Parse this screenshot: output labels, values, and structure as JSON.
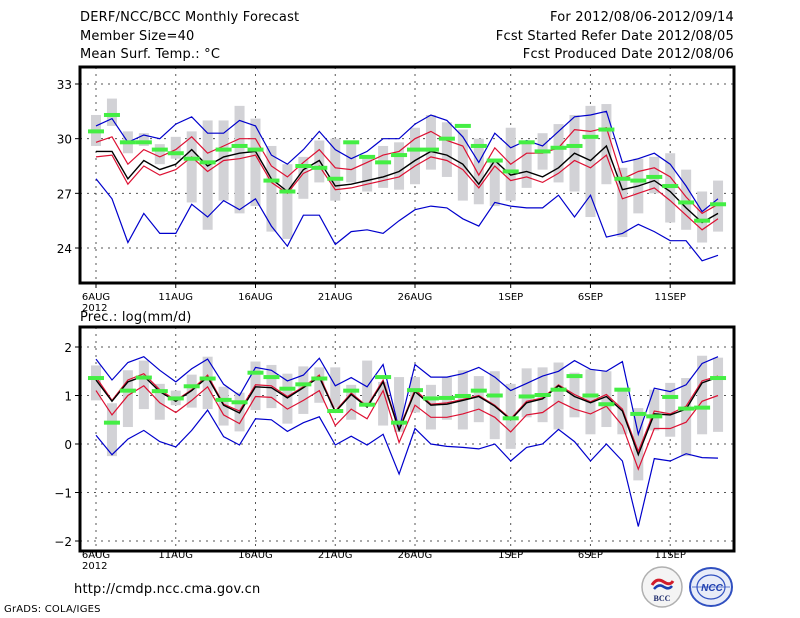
{
  "header": {
    "title": "DERF/NCC/BCC Monthly Forecast",
    "member_size": "Member Size=40",
    "variable_top": "Mean Surf. Temp.: °C",
    "period": "For 2012/08/06-2012/09/14",
    "start_date": "Fcst Started Refer Date 2012/08/05",
    "produced_date": "Fcst Produced Date 2012/08/06"
  },
  "footer": {
    "url": "http://cmdp.ncc.cma.gov.cn",
    "credit": "GrADS: COLA/IGES",
    "logo_left": "BCC",
    "logo_right": "NCC"
  },
  "colors": {
    "envelope": "#0000cc",
    "spread": "#dd1133",
    "mean": "#000000",
    "obs": "#44ee44",
    "bars": "#d2d2d6",
    "grid": "#555555"
  },
  "chart_data": [
    {
      "type": "line",
      "title": "Mean Surf. Temp.: °C",
      "xlabel": "",
      "ylabel": "°C",
      "ylim": [
        22,
        34
      ],
      "yticks": [
        24,
        27,
        30,
        33
      ],
      "ytick_labels": [
        "24",
        "27",
        "30",
        "33"
      ],
      "xtick_labels": [
        "6AUG",
        "11AUG",
        "16AUG",
        "21AUG",
        "26AUG",
        "1SEP",
        "6SEP",
        "11SEP"
      ],
      "xtick_index": [
        0,
        5,
        10,
        15,
        20,
        26,
        31,
        36
      ],
      "year_label": "2012",
      "grid": true,
      "x": [
        "08-06",
        "08-07",
        "08-08",
        "08-09",
        "08-10",
        "08-11",
        "08-12",
        "08-13",
        "08-14",
        "08-15",
        "08-16",
        "08-17",
        "08-18",
        "08-19",
        "08-20",
        "08-21",
        "08-22",
        "08-23",
        "08-24",
        "08-25",
        "08-26",
        "08-27",
        "08-28",
        "08-29",
        "08-30",
        "08-31",
        "09-01",
        "09-02",
        "09-03",
        "09-04",
        "09-05",
        "09-06",
        "09-07",
        "09-08",
        "09-09",
        "09-10",
        "09-11",
        "09-12",
        "09-13",
        "09-14"
      ],
      "bars_low": [
        29.6,
        30.7,
        29.2,
        29.6,
        28.6,
        28.9,
        26.5,
        25.0,
        26.6,
        25.9,
        26.3,
        24.9,
        24.5,
        26.7,
        27.6,
        26.6,
        27.6,
        27.1,
        27.3,
        27.2,
        27.5,
        28.3,
        27.9,
        26.6,
        26.4,
        26.3,
        26.6,
        27.3,
        28.3,
        27.6,
        27.1,
        25.7,
        27.5,
        24.6,
        25.9,
        27.0,
        25.4,
        25.0,
        24.3,
        24.9
      ],
      "bars_high": [
        31.3,
        32.2,
        30.4,
        30.3,
        29.7,
        30.1,
        30.4,
        31.0,
        31.0,
        31.8,
        31.1,
        29.6,
        28.6,
        29.0,
        29.9,
        30.0,
        29.7,
        29.0,
        29.6,
        29.8,
        30.6,
        31.3,
        30.9,
        30.5,
        30.0,
        28.7,
        30.6,
        29.9,
        30.3,
        30.8,
        31.3,
        31.8,
        31.9,
        28.4,
        28.9,
        29.0,
        29.2,
        28.3,
        27.1,
        27.7
      ],
      "series": [
        {
          "name": "Observed",
          "values": [
            30.4,
            31.3,
            29.8,
            29.8,
            29.4,
            29.2,
            28.9,
            28.7,
            29.4,
            29.6,
            29.4,
            27.7,
            27.1,
            28.5,
            28.4,
            27.8,
            29.8,
            29.0,
            28.7,
            29.1,
            29.4,
            29.4,
            30.0,
            30.7,
            29.6,
            28.8,
            28.2,
            29.8,
            29.3,
            29.5,
            29.6,
            30.1,
            30.5,
            27.8,
            27.7,
            27.9,
            27.4,
            26.5,
            25.5,
            26.4
          ]
        },
        {
          "name": "Ensemble max",
          "values": [
            30.7,
            31.1,
            29.8,
            30.2,
            30.0,
            30.8,
            31.2,
            30.3,
            30.3,
            31.0,
            30.7,
            29.1,
            28.6,
            29.4,
            30.4,
            29.4,
            28.9,
            29.3,
            30.0,
            30.0,
            30.8,
            31.3,
            31.0,
            30.1,
            28.7,
            30.3,
            29.5,
            29.9,
            29.6,
            30.4,
            31.2,
            31.3,
            31.5,
            28.7,
            28.9,
            29.2,
            28.6,
            27.4,
            26.0,
            26.7
          ]
        },
        {
          "name": "Mean + 1 std",
          "values": [
            29.8,
            30.1,
            28.6,
            29.4,
            29.0,
            29.4,
            30.1,
            29.2,
            29.6,
            30.0,
            30.0,
            28.5,
            27.9,
            28.7,
            29.4,
            28.4,
            28.3,
            28.7,
            29.1,
            29.3,
            30.0,
            30.4,
            29.9,
            29.6,
            28.0,
            29.5,
            28.6,
            29.2,
            29.2,
            29.5,
            30.5,
            30.4,
            30.6,
            27.8,
            28.2,
            28.4,
            27.9,
            26.8,
            25.9,
            26.4
          ]
        },
        {
          "name": "Ensemble mean",
          "values": [
            29.3,
            29.3,
            27.8,
            28.8,
            28.3,
            28.6,
            29.4,
            28.5,
            29.0,
            29.2,
            29.3,
            27.8,
            27.1,
            28.3,
            28.8,
            27.4,
            27.5,
            27.7,
            27.9,
            28.2,
            28.8,
            29.3,
            29.1,
            28.6,
            27.5,
            28.8,
            28.0,
            28.2,
            27.9,
            28.4,
            29.2,
            28.8,
            29.6,
            27.2,
            27.4,
            27.7,
            27.1,
            26.2,
            25.4,
            25.9
          ]
        },
        {
          "name": "Mean - 1 std",
          "values": [
            29.0,
            29.1,
            27.5,
            28.5,
            28.0,
            28.3,
            29.0,
            28.2,
            28.8,
            28.9,
            29.1,
            27.6,
            27.0,
            28.1,
            28.5,
            27.2,
            27.3,
            27.5,
            27.7,
            27.9,
            28.5,
            29.0,
            28.8,
            28.3,
            27.3,
            28.5,
            27.7,
            27.9,
            27.6,
            28.1,
            28.8,
            28.4,
            29.1,
            26.7,
            27.0,
            27.3,
            26.6,
            25.8,
            25.0,
            25.6
          ]
        },
        {
          "name": "Ensemble min",
          "values": [
            27.8,
            26.7,
            24.3,
            25.9,
            24.8,
            24.8,
            26.4,
            25.7,
            26.6,
            26.1,
            26.7,
            25.2,
            24.1,
            25.8,
            25.8,
            24.2,
            24.9,
            25.0,
            24.8,
            25.5,
            26.1,
            26.3,
            26.2,
            25.6,
            25.2,
            26.5,
            26.3,
            26.2,
            26.2,
            26.9,
            25.7,
            26.9,
            24.6,
            24.8,
            25.3,
            24.9,
            24.4,
            24.4,
            23.3,
            23.6
          ]
        }
      ]
    },
    {
      "type": "line",
      "title": "Prec.: log(mm/d)",
      "xlabel": "",
      "ylabel": "log(mm/d)",
      "ylim": [
        -2.1,
        2.3
      ],
      "yticks": [
        -2,
        -1,
        0,
        1,
        2
      ],
      "ytick_labels": [
        "−2",
        "−1",
        "0",
        "1",
        "2"
      ],
      "xtick_labels": [
        "6AUG",
        "11AUG",
        "16AUG",
        "21AUG",
        "26AUG",
        "1SEP",
        "6SEP",
        "11SEP"
      ],
      "xtick_index": [
        0,
        5,
        10,
        15,
        20,
        26,
        31,
        36
      ],
      "year_label": "2012",
      "grid": true,
      "x": [
        "08-06",
        "08-07",
        "08-08",
        "08-09",
        "08-10",
        "08-11",
        "08-12",
        "08-13",
        "08-14",
        "08-15",
        "08-16",
        "08-17",
        "08-18",
        "08-19",
        "08-20",
        "08-21",
        "08-22",
        "08-23",
        "08-24",
        "08-25",
        "08-26",
        "08-27",
        "08-28",
        "08-29",
        "08-30",
        "08-31",
        "09-01",
        "09-02",
        "09-03",
        "09-04",
        "09-05",
        "09-06",
        "09-07",
        "09-08",
        "09-09",
        "09-10",
        "09-11",
        "09-12",
        "09-13",
        "09-14"
      ],
      "bars_low": [
        0.9,
        -0.25,
        0.35,
        0.72,
        0.5,
        0.8,
        0.75,
        0.72,
        0.38,
        0.26,
        0.7,
        0.74,
        0.42,
        0.62,
        0.85,
        0.75,
        0.5,
        0.78,
        0.38,
        0.25,
        0.65,
        0.3,
        0.5,
        0.3,
        0.45,
        0.1,
        -0.1,
        0.55,
        0.45,
        0.3,
        0.55,
        0.2,
        0.35,
        0.2,
        -0.75,
        0.28,
        0.15,
        -0.25,
        0.2,
        0.25
      ],
      "bars_high": [
        1.62,
        0.84,
        1.52,
        1.72,
        1.24,
        1.1,
        1.43,
        1.8,
        1.18,
        1.06,
        1.7,
        1.63,
        1.45,
        1.6,
        1.58,
        1.58,
        1.22,
        1.72,
        1.28,
        1.38,
        1.38,
        1.22,
        1.38,
        1.52,
        1.4,
        1.5,
        1.24,
        1.56,
        1.58,
        1.68,
        1.47,
        1.54,
        1.5,
        1.12,
        0.74,
        1.12,
        1.26,
        1.36,
        1.82,
        1.78
      ],
      "series": [
        {
          "name": "Observed",
          "values": [
            1.36,
            0.44,
            1.1,
            1.37,
            1.09,
            0.94,
            1.19,
            1.35,
            0.91,
            0.86,
            1.47,
            1.38,
            1.14,
            1.23,
            1.35,
            0.68,
            1.1,
            0.81,
            1.38,
            0.44,
            1.11,
            0.94,
            0.95,
            0.99,
            1.1,
            1.0,
            0.53,
            0.98,
            1.01,
            1.12,
            1.4,
            1.0,
            0.82,
            1.12,
            0.62,
            0.57,
            0.97,
            0.73,
            0.75,
            1.36
          ]
        },
        {
          "name": "Ensemble max",
          "values": [
            1.75,
            1.32,
            1.68,
            1.8,
            1.52,
            1.28,
            1.55,
            1.75,
            1.23,
            1.0,
            1.58,
            1.52,
            1.3,
            1.42,
            1.77,
            1.2,
            1.37,
            1.18,
            1.64,
            0.3,
            1.64,
            1.38,
            1.38,
            1.45,
            1.58,
            1.38,
            1.1,
            1.25,
            1.4,
            1.5,
            1.72,
            1.54,
            1.5,
            1.7,
            0.2,
            1.15,
            1.08,
            1.22,
            1.66,
            1.8
          ]
        },
        {
          "name": "Mean + 1 std",
          "values": [
            1.38,
            0.9,
            1.32,
            1.45,
            1.12,
            0.9,
            1.12,
            1.42,
            0.82,
            0.68,
            1.22,
            1.2,
            0.98,
            1.18,
            1.42,
            0.68,
            1.05,
            0.78,
            1.32,
            0.3,
            1.12,
            0.82,
            0.85,
            0.92,
            1.0,
            0.8,
            0.52,
            0.88,
            0.95,
            1.22,
            1.02,
            0.87,
            1.02,
            0.72,
            -0.15,
            0.68,
            0.62,
            0.78,
            1.3,
            1.4
          ]
        },
        {
          "name": "Ensemble mean",
          "values": [
            1.32,
            0.88,
            1.28,
            1.4,
            1.08,
            0.88,
            1.1,
            1.38,
            0.8,
            0.64,
            1.18,
            1.16,
            0.95,
            1.16,
            1.38,
            0.66,
            1.02,
            0.76,
            1.28,
            0.28,
            1.08,
            0.8,
            0.82,
            0.9,
            0.98,
            0.78,
            0.5,
            0.85,
            0.93,
            1.2,
            0.98,
            0.85,
            0.98,
            0.68,
            -0.22,
            0.62,
            0.6,
            0.72,
            1.26,
            1.38
          ]
        },
        {
          "name": "Mean - 1 std",
          "values": [
            1.1,
            0.6,
            1.0,
            1.2,
            0.85,
            0.65,
            0.9,
            1.18,
            0.6,
            0.42,
            0.98,
            0.96,
            0.72,
            0.9,
            1.1,
            0.38,
            0.72,
            0.52,
            1.1,
            0.03,
            0.8,
            0.55,
            0.55,
            0.62,
            0.72,
            0.55,
            0.25,
            0.6,
            0.65,
            0.88,
            0.72,
            0.62,
            0.78,
            0.38,
            -0.52,
            0.32,
            0.32,
            0.45,
            0.88,
            1.0
          ]
        },
        {
          "name": "Ensemble min",
          "values": [
            0.18,
            -0.22,
            0.1,
            0.28,
            0.05,
            -0.06,
            0.28,
            0.7,
            0.15,
            -0.02,
            0.52,
            0.5,
            0.26,
            0.44,
            0.56,
            -0.02,
            0.16,
            -0.02,
            0.2,
            -0.62,
            0.32,
            0.0,
            -0.05,
            -0.07,
            -0.1,
            0.0,
            -0.35,
            -0.07,
            0.0,
            0.3,
            0.05,
            -0.35,
            0.0,
            -0.35,
            -1.7,
            -0.3,
            -0.35,
            -0.2,
            -0.28,
            -0.29
          ]
        }
      ]
    }
  ]
}
